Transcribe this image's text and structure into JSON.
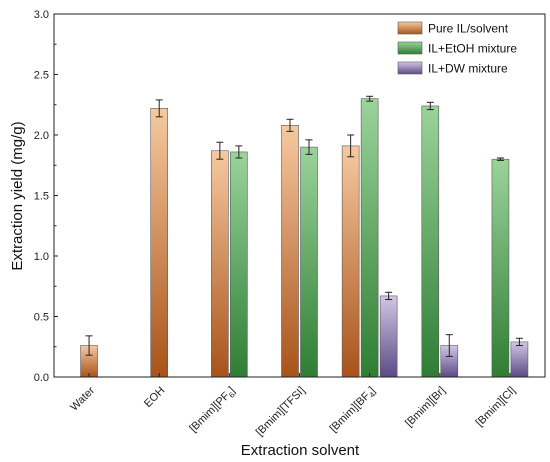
{
  "chart_data": {
    "type": "bar",
    "xlabel": "Extraction solvent",
    "ylabel": "Extraction yield (mg/g)",
    "ylim": [
      0,
      3.0
    ],
    "yticks": [
      "0.0",
      "0.5",
      "1.0",
      "1.5",
      "2.0",
      "2.5",
      "3.0"
    ],
    "legend_position": "top-right",
    "categories": [
      {
        "pre": "Water",
        "sub": "",
        "post": ""
      },
      {
        "pre": "EOH",
        "sub": "",
        "post": ""
      },
      {
        "pre": "[Bmim][PF",
        "sub": "6",
        "post": "]"
      },
      {
        "pre": "[Bmim][TFSI]",
        "sub": "",
        "post": ""
      },
      {
        "pre": "[Bmim][BF",
        "sub": "4",
        "post": "]"
      },
      {
        "pre": "[Bmim][Br]",
        "sub": "",
        "post": ""
      },
      {
        "pre": "[Bmim][Cl]",
        "sub": "",
        "post": ""
      }
    ],
    "series": [
      {
        "name": "Pure IL/solvent",
        "color_top": "#f6c9a0",
        "color_bottom": "#a8531a",
        "values": [
          0.26,
          2.22,
          1.87,
          2.08,
          1.91,
          null,
          null
        ],
        "errors": [
          0.08,
          0.07,
          0.07,
          0.05,
          0.09,
          null,
          null
        ]
      },
      {
        "name": "IL+EtOH mixture",
        "color_top": "#9bd39b",
        "color_bottom": "#2f7d34",
        "values": [
          null,
          null,
          1.86,
          1.9,
          2.3,
          2.24,
          1.8
        ],
        "errors": [
          null,
          null,
          0.05,
          0.06,
          0.02,
          0.03,
          0.01
        ]
      },
      {
        "name": "IL+DW mixture",
        "color_top": "#d2c6e4",
        "color_bottom": "#5b4a86",
        "values": [
          null,
          null,
          null,
          null,
          0.67,
          0.26,
          0.29
        ],
        "errors": [
          null,
          null,
          null,
          null,
          0.03,
          0.09,
          0.03
        ]
      }
    ]
  }
}
